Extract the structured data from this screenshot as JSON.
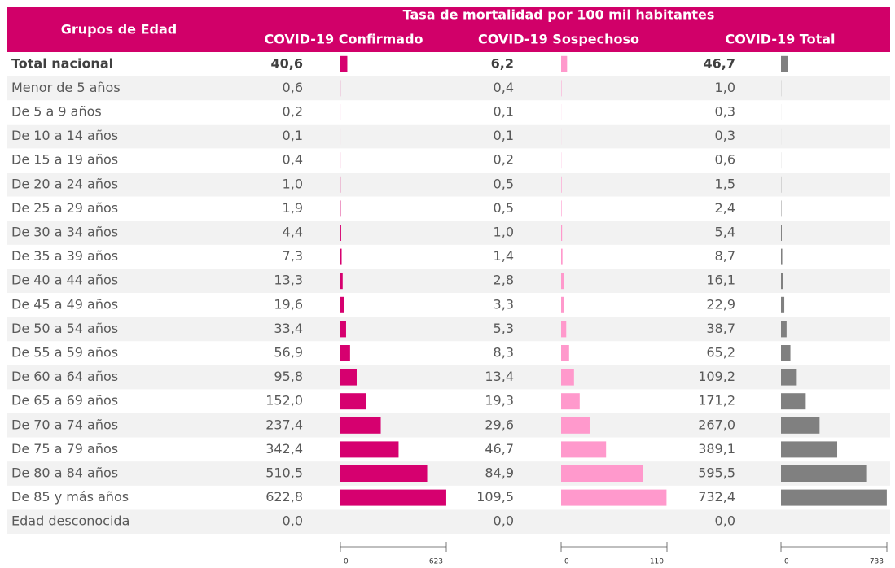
{
  "table": {
    "group_header": "Grupos de Edad",
    "title": "Tasa de mortalidad por 100 mil habitantes",
    "columns": [
      {
        "name": "COVID-19 Confirmado",
        "color": "#d6006f",
        "lim": [
          0,
          623
        ],
        "ticks": [
          0,
          623
        ]
      },
      {
        "name": "COVID-19 Sospechoso",
        "color": "#ff99cc",
        "lim": [
          0,
          110
        ],
        "ticks": [
          0,
          110
        ]
      },
      {
        "name": "COVID-19 Total",
        "color": "#808080",
        "lim": [
          0,
          733
        ],
        "ticks": [
          0,
          733
        ]
      }
    ],
    "rows": [
      {
        "label": "Total nacional",
        "values": [
          40.6,
          6.2,
          46.7
        ],
        "value_labels": [
          "40,6",
          "6,2",
          "46,7"
        ]
      },
      {
        "label": "Menor de 5 años",
        "values": [
          0.6,
          0.4,
          1.0
        ],
        "value_labels": [
          "0,6",
          "0,4",
          "1,0"
        ]
      },
      {
        "label": "De 5 a 9 años",
        "values": [
          0.2,
          0.1,
          0.3
        ],
        "value_labels": [
          "0,2",
          "0,1",
          "0,3"
        ]
      },
      {
        "label": "De 10 a 14 años",
        "values": [
          0.1,
          0.1,
          0.3
        ],
        "value_labels": [
          "0,1",
          "0,1",
          "0,3"
        ]
      },
      {
        "label": "De 15 a 19 años",
        "values": [
          0.4,
          0.2,
          0.6
        ],
        "value_labels": [
          "0,4",
          "0,2",
          "0,6"
        ]
      },
      {
        "label": "De 20 a 24 años",
        "values": [
          1.0,
          0.5,
          1.5
        ],
        "value_labels": [
          "1,0",
          "0,5",
          "1,5"
        ]
      },
      {
        "label": "De 25 a 29 años",
        "values": [
          1.9,
          0.5,
          2.4
        ],
        "value_labels": [
          "1,9",
          "0,5",
          "2,4"
        ]
      },
      {
        "label": "De 30 a 34 años",
        "values": [
          4.4,
          1.0,
          5.4
        ],
        "value_labels": [
          "4,4",
          "1,0",
          "5,4"
        ]
      },
      {
        "label": "De 35 a 39 años",
        "values": [
          7.3,
          1.4,
          8.7
        ],
        "value_labels": [
          "7,3",
          "1,4",
          "8,7"
        ]
      },
      {
        "label": "De 40 a 44 años",
        "values": [
          13.3,
          2.8,
          16.1
        ],
        "value_labels": [
          "13,3",
          "2,8",
          "16,1"
        ]
      },
      {
        "label": "De 45 a 49 años",
        "values": [
          19.6,
          3.3,
          22.9
        ],
        "value_labels": [
          "19,6",
          "3,3",
          "22,9"
        ]
      },
      {
        "label": "De 50 a 54 años",
        "values": [
          33.4,
          5.3,
          38.7
        ],
        "value_labels": [
          "33,4",
          "5,3",
          "38,7"
        ]
      },
      {
        "label": "De 55 a 59 años",
        "values": [
          56.9,
          8.3,
          65.2
        ],
        "value_labels": [
          "56,9",
          "8,3",
          "65,2"
        ]
      },
      {
        "label": "De 60 a 64 años",
        "values": [
          95.8,
          13.4,
          109.2
        ],
        "value_labels": [
          "95,8",
          "13,4",
          "109,2"
        ]
      },
      {
        "label": "De 65 a 69 años",
        "values": [
          152.0,
          19.3,
          171.2
        ],
        "value_labels": [
          "152,0",
          "19,3",
          "171,2"
        ]
      },
      {
        "label": "De 70 a 74 años",
        "values": [
          237.4,
          29.6,
          267.0
        ],
        "value_labels": [
          "237,4",
          "29,6",
          "267,0"
        ]
      },
      {
        "label": "De 75 a 79 años",
        "values": [
          342.4,
          46.7,
          389.1
        ],
        "value_labels": [
          "342,4",
          "46,7",
          "389,1"
        ]
      },
      {
        "label": "De 80 a 84 años",
        "values": [
          510.5,
          84.9,
          595.5
        ],
        "value_labels": [
          "510,5",
          "84,9",
          "595,5"
        ]
      },
      {
        "label": "De 85 y más años",
        "values": [
          622.8,
          109.5,
          732.4
        ],
        "value_labels": [
          "622,8",
          "109,5",
          "732,4"
        ]
      },
      {
        "label": "Edad desconocida",
        "values": [
          0.0,
          0.0,
          0.0
        ],
        "value_labels": [
          "0,0",
          "0,0",
          "0,0"
        ]
      }
    ]
  }
}
